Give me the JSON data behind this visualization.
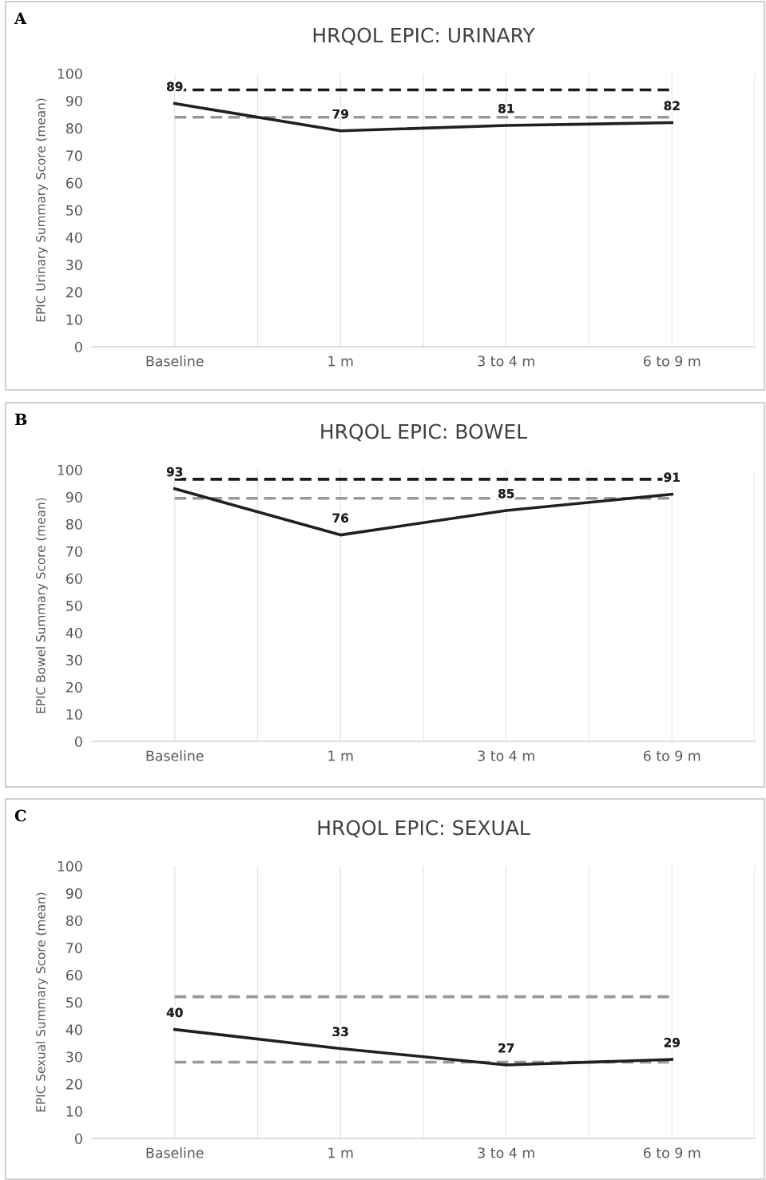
{
  "chart_data": [
    {
      "type": "line",
      "title": "HRQOL EPIC: URINARY",
      "ylabel": "EPIC Urinary Summary Score (mean)",
      "annotations": [
        "A"
      ],
      "categories": [
        "Baseline",
        "1 m",
        "3 to 4 m",
        "6 to 9 m"
      ],
      "ylim": [
        0,
        100
      ],
      "yticks": [
        0,
        10,
        20,
        30,
        40,
        50,
        60,
        70,
        80,
        90,
        100
      ],
      "grid": "x",
      "marker": "none",
      "series": [
        {
          "color": "#1a1a1a",
          "line_style": "dashed",
          "values": [
            94,
            94,
            94,
            94
          ]
        },
        {
          "color": "#999999",
          "line_style": "dashed",
          "values": [
            84,
            84,
            84,
            84
          ]
        },
        {
          "color": "#231f20",
          "line_style": "solid",
          "values": [
            89,
            79,
            81,
            82
          ],
          "value_labels": [
            "89",
            "79",
            "81",
            "82"
          ]
        }
      ]
    },
    {
      "type": "line",
      "title": "HRQOL EPIC: BOWEL",
      "ylabel": "EPIC Bowel Summary Score (mean)",
      "annotations": [
        "B"
      ],
      "categories": [
        "Baseline",
        "1 m",
        "3 to 4 m",
        "6 to 9 m"
      ],
      "ylim": [
        0,
        100
      ],
      "yticks": [
        0,
        10,
        20,
        30,
        40,
        50,
        60,
        70,
        80,
        90,
        100
      ],
      "grid": "x",
      "marker": "none",
      "series": [
        {
          "color": "#1a1a1a",
          "line_style": "dashed",
          "values": [
            96.5,
            96.5,
            96.5,
            96.5
          ]
        },
        {
          "color": "#999999",
          "line_style": "dashed",
          "values": [
            89.5,
            89.5,
            89.5,
            89.5
          ]
        },
        {
          "color": "#231f20",
          "line_style": "solid",
          "values": [
            93,
            76,
            85,
            91
          ],
          "value_labels": [
            "93",
            "76",
            "85",
            "91"
          ]
        }
      ]
    },
    {
      "type": "line",
      "title": "HRQOL EPIC: SEXUAL",
      "ylabel": "EPIC Sexual Summary Score (mean)",
      "annotations": [
        "C"
      ],
      "categories": [
        "Baseline",
        "1 m",
        "3 to 4 m",
        "6 to 9 m"
      ],
      "ylim": [
        0,
        100
      ],
      "yticks": [
        0,
        10,
        20,
        30,
        40,
        50,
        60,
        70,
        80,
        90,
        100
      ],
      "grid": "x",
      "marker": "none",
      "series": [
        {
          "color": "#999999",
          "line_style": "dashed",
          "values": [
            52,
            52,
            52,
            52
          ]
        },
        {
          "color": "#999999",
          "line_style": "dashed",
          "values": [
            28,
            28,
            28,
            28
          ]
        },
        {
          "color": "#231f20",
          "line_style": "solid",
          "values": [
            40,
            33,
            27,
            29
          ],
          "value_labels": [
            "40",
            "33",
            "27",
            "29"
          ]
        }
      ]
    }
  ]
}
